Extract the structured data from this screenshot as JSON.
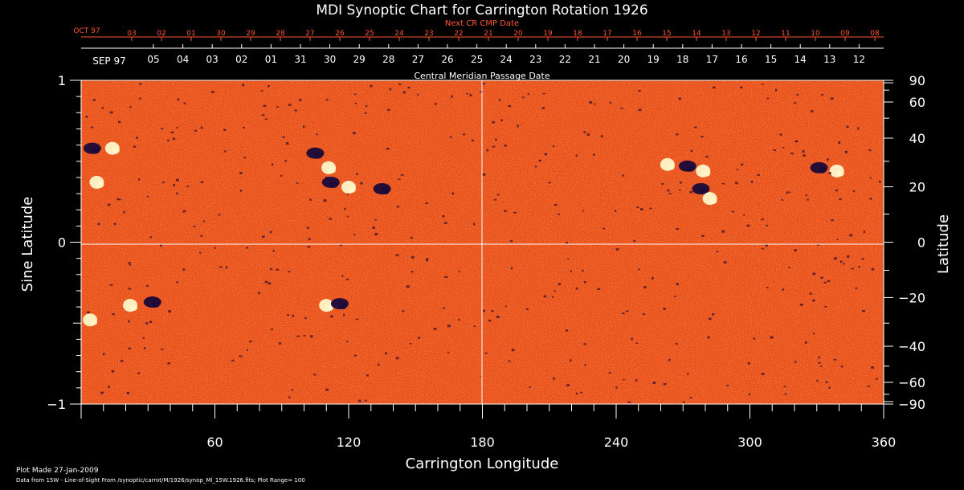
{
  "chart_data": {
    "type": "heatmap",
    "title": "MDI Synoptic Chart for Carrington Rotation 1926",
    "next_cr_label": "Next CR CMP Date",
    "central_meridian_label": "Central Meridian Passage Date",
    "xlabel": "Carrington Longitude",
    "ylabel_left": "Sine Latitude",
    "ylabel_right": "Latitude",
    "xlim": [
      0,
      360
    ],
    "ylim": [
      -1,
      1
    ],
    "x_ticks": [
      "60",
      "120",
      "180",
      "240",
      "300",
      "360"
    ],
    "x_tick_values": [
      60,
      120,
      180,
      240,
      300,
      360
    ],
    "y_left_ticks": [
      "1",
      "0",
      "−1"
    ],
    "y_left_tick_values": [
      1,
      0,
      -1
    ],
    "y_right_ticks": [
      "90",
      "60",
      "40",
      "20",
      "0",
      "−20",
      "−40",
      "−60",
      "−90"
    ],
    "y_right_tick_values": [
      90,
      60,
      40,
      20,
      0,
      -20,
      -40,
      -60,
      -90
    ],
    "top_red_month": "OCT 97",
    "top_red_dates": [
      "03",
      "02",
      "01",
      "30",
      "29",
      "28",
      "27",
      "26",
      "25",
      "24",
      "23",
      "22",
      "21",
      "20",
      "19",
      "18",
      "17",
      "16",
      "15",
      "14",
      "13",
      "12",
      "11",
      "10",
      "09",
      "08"
    ],
    "top_white_month": "SEP 97",
    "top_white_dates": [
      "05",
      "04",
      "03",
      "02",
      "01",
      "31",
      "30",
      "29",
      "28",
      "27",
      "26",
      "25",
      "24",
      "23",
      "22",
      "21",
      "20",
      "19",
      "18",
      "17",
      "16",
      "15",
      "14",
      "13",
      "12"
    ],
    "active_regions": [
      {
        "lon": 5,
        "sinlat": 0.58,
        "polarity": "neg"
      },
      {
        "lon": 14,
        "sinlat": 0.58,
        "polarity": "pos"
      },
      {
        "lon": 7,
        "sinlat": 0.37,
        "polarity": "pos"
      },
      {
        "lon": 105,
        "sinlat": 0.55,
        "polarity": "neg"
      },
      {
        "lon": 111,
        "sinlat": 0.46,
        "polarity": "pos"
      },
      {
        "lon": 120,
        "sinlat": 0.34,
        "polarity": "pos"
      },
      {
        "lon": 112,
        "sinlat": 0.37,
        "polarity": "neg"
      },
      {
        "lon": 135,
        "sinlat": 0.33,
        "polarity": "neg"
      },
      {
        "lon": 263,
        "sinlat": 0.48,
        "polarity": "pos"
      },
      {
        "lon": 272,
        "sinlat": 0.47,
        "polarity": "neg"
      },
      {
        "lon": 279,
        "sinlat": 0.44,
        "polarity": "pos"
      },
      {
        "lon": 278,
        "sinlat": 0.33,
        "polarity": "neg"
      },
      {
        "lon": 282,
        "sinlat": 0.27,
        "polarity": "pos"
      },
      {
        "lon": 331,
        "sinlat": 0.46,
        "polarity": "neg"
      },
      {
        "lon": 339,
        "sinlat": 0.44,
        "polarity": "pos"
      },
      {
        "lon": 22,
        "sinlat": -0.39,
        "polarity": "pos"
      },
      {
        "lon": 32,
        "sinlat": -0.37,
        "polarity": "neg"
      },
      {
        "lon": 4,
        "sinlat": -0.48,
        "polarity": "pos"
      },
      {
        "lon": 110,
        "sinlat": -0.39,
        "polarity": "pos"
      },
      {
        "lon": 116,
        "sinlat": -0.38,
        "polarity": "neg"
      }
    ]
  },
  "footer": {
    "plot_made": "Plot Made 27-Jan-2009",
    "data_source": "Data from 15W - Line-of-Sight From /synoptic/carrot/M/1926/synop_Ml_15W.1926.fits; Plot Range=  100"
  },
  "colors": {
    "background": "#000000",
    "map_base": "#ee4a10",
    "positive_field": "#fff6c8",
    "negative_field": "#1a0a3a",
    "red_text": "#ff5533"
  }
}
